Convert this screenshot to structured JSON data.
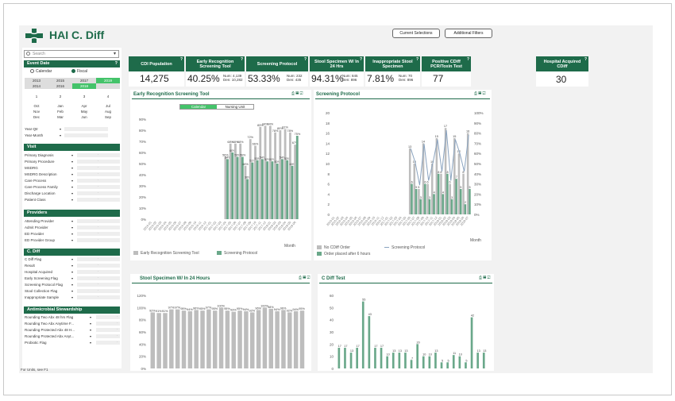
{
  "app": {
    "title": "HAI C. Diff"
  },
  "header": {
    "btn_current": "Current Selections",
    "btn_additional": "Additional Filters"
  },
  "search": {
    "placeholder": "Search"
  },
  "event_date": {
    "title": "Event Date",
    "calendar": "Calendar",
    "fiscal": "Fiscal",
    "years": [
      "2013",
      "2015",
      "2017",
      "2019",
      "2014",
      "2016",
      "2018"
    ],
    "quarters": [
      "1",
      "2",
      "3",
      "4"
    ],
    "months": [
      "Oct",
      "Jan",
      "Apr",
      "Jul",
      "Nov",
      "Feb",
      "May",
      "Aug",
      "Dec",
      "Mar",
      "Jun",
      "Sep"
    ],
    "yq": "Year-Qtr",
    "ym": "Year-Month"
  },
  "visit": {
    "title": "Visit",
    "items": [
      "Primary Diagnosis",
      "Primary Procedure",
      "MSDRG",
      "MSDRG Description",
      "Care Process",
      "Care Process Family",
      "Discharge Location",
      "Patient Class"
    ]
  },
  "providers": {
    "title": "Providers",
    "items": [
      "Attending Provider",
      "Admit Provider",
      "ED Provider",
      "ED Provider Group"
    ]
  },
  "cdiff": {
    "title": "C. Diff",
    "items": [
      "C Diff Flag",
      "Result",
      "Hospital Acquired",
      "Early Screening Flag",
      "Screening Protocol Flag",
      "Stool Collection Flag",
      "Inappropriate Sample"
    ]
  },
  "abx": {
    "title": "Antimicrobial Stewardship",
    "items": [
      "Rounding Two Abx 48 hrs Flag",
      "Rounding Two Abx Anytime F...",
      "Rounding Protected Abx 48 H...",
      "Rounding Protected Abx Anyt...",
      "Probiotic Flag"
    ]
  },
  "kpis": [
    {
      "label": "CDI Population",
      "value": "14,275",
      "num": "",
      "den": ""
    },
    {
      "label": "Early Recognition Screening Tool",
      "value": "40.25%",
      "num": "Num: 4,139",
      "den": "Den: 10,282"
    },
    {
      "label": "Screening Protocol",
      "value": "53.33%",
      "num": "Num: 232",
      "den": "Den: 435"
    },
    {
      "label": "Stool Specimen W/ In 24 Hrs",
      "value": "94.31%",
      "num": "Num: 845",
      "den": "Den: 896"
    },
    {
      "label": "Inappropriate Stool Specimen",
      "value": "7.81%",
      "num": "Num: 70",
      "den": "Den: 896"
    },
    {
      "label": "Positive CDiff PCR/Toxin Test",
      "value": "77",
      "num": "",
      "den": ""
    }
  ],
  "hospital": {
    "label": "Hospital Acquired CDiff",
    "value": "30"
  },
  "charts": {
    "early": {
      "title": "Early Recognition Screening Tool",
      "toggle_a": "Calendar",
      "toggle_b": "Nursing Unit",
      "legend_a": "Early Recognition Screening Tool",
      "legend_b": "Screening Protocol",
      "axis_btn": "Month"
    },
    "screening": {
      "title": "Screening Protocol",
      "legend_a": "No CDiff Order",
      "legend_b": "Screening Protocol",
      "legend_c": "Order placed after 6 hours",
      "axis_btn": "Month"
    },
    "stool": {
      "title": "Stool Specimen W/ In 24 Hours"
    },
    "test": {
      "title": "C Diff Test"
    }
  },
  "colors": {
    "green": "#1e6b4a",
    "bar_grey": "#bdbdbd",
    "bar_green": "#6aa88a",
    "bright": "#44c36a"
  },
  "footer": {
    "note": "For Units, see F1"
  },
  "chart_data": [
    {
      "type": "bar",
      "title": "Early Recognition Screening Tool",
      "ylim": [
        0,
        90
      ],
      "series": [
        {
          "name": "Early Recognition Screening Tool",
          "values": [
            0,
            0,
            0,
            0,
            0,
            0,
            0,
            0,
            0,
            0,
            0,
            0,
            0,
            0,
            0,
            56,
            68,
            68,
            68,
            48,
            72,
            66,
            83,
            84,
            84,
            78,
            80,
            81,
            78,
            67
          ]
        },
        {
          "name": "Screening Protocol",
          "values": [
            0,
            0,
            0,
            0,
            0,
            0,
            0,
            0,
            0,
            0,
            0,
            0,
            0,
            0,
            0,
            54,
            60,
            56,
            56,
            36,
            51,
            53,
            54,
            52,
            52,
            50,
            54,
            53,
            48,
            75
          ]
        }
      ]
    },
    {
      "type": "bar",
      "title": "Screening Protocol",
      "ylim": [
        0,
        20
      ],
      "series": [
        {
          "name": "No CDiff Order",
          "values": [
            0,
            0,
            0,
            0,
            0,
            0,
            0,
            0,
            0,
            0,
            0,
            0,
            0,
            0,
            0,
            0,
            0,
            13,
            10,
            5,
            14,
            6,
            10,
            15,
            8,
            17,
            6,
            15,
            12,
            8,
            16
          ]
        },
        {
          "name": "Order placed after 6 hours",
          "values": [
            0,
            0,
            0,
            0,
            0,
            0,
            0,
            0,
            0,
            0,
            0,
            0,
            0,
            0,
            0,
            0,
            0,
            6,
            5,
            3,
            6,
            3,
            4,
            8,
            4,
            8,
            3,
            7,
            5,
            2,
            5
          ]
        }
      ]
    },
    {
      "type": "bar",
      "title": "Stool Specimen W/ In 24 Hours",
      "ylim": [
        0,
        120
      ],
      "values": [
        92,
        91,
        91,
        97,
        97,
        95,
        94,
        96,
        95,
        97,
        95,
        100,
        95,
        93,
        95,
        94,
        92,
        96,
        100,
        98,
        94,
        96,
        92,
        94,
        95
      ]
    },
    {
      "type": "bar",
      "title": "C Diff Test",
      "ylim": [
        0,
        60
      ],
      "values": [
        17,
        17,
        13,
        17,
        55,
        43,
        17,
        17,
        10,
        13,
        13,
        13,
        7,
        20,
        10,
        10,
        13,
        5,
        5,
        11,
        10,
        5,
        42,
        13,
        13
      ]
    }
  ]
}
